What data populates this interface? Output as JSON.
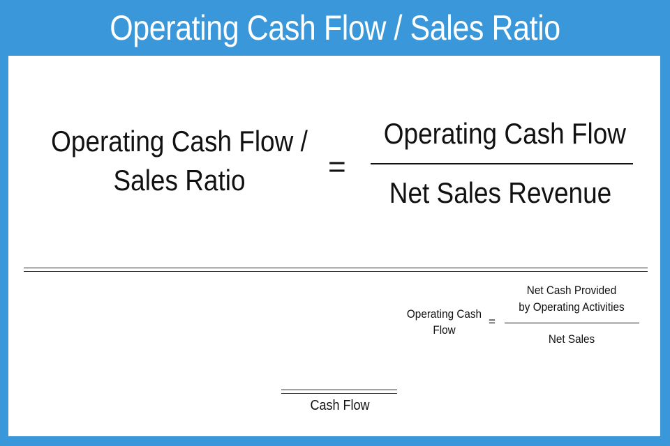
{
  "header": {
    "title": "Operating Cash Flow / Sales Ratio"
  },
  "main_formula": {
    "lhs_line1": "Operating Cash Flow /",
    "lhs_line2": "Sales Ratio",
    "equals": "=",
    "numerator": "Operating Cash Flow",
    "denominator": "Net Sales Revenue"
  },
  "sub_formula": {
    "lhs_line1": "Operating Cash",
    "lhs_line2": "Flow",
    "equals": "=",
    "numerator_line1": "Net Cash Provided",
    "numerator_line2": "by Operating Activities",
    "denominator": "Net Sales"
  },
  "footer": {
    "label": "Cash Flow"
  },
  "colors": {
    "frame": "#3a97d9",
    "panel": "#ffffff",
    "text": "#111111"
  }
}
